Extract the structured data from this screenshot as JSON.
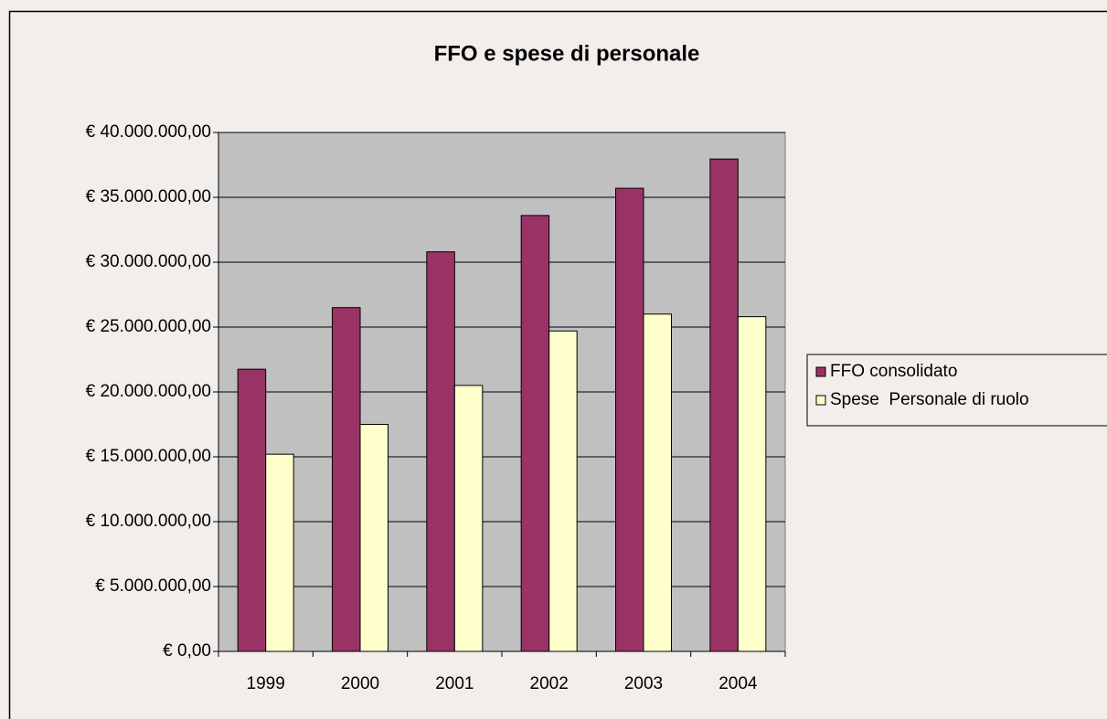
{
  "chart_data": {
    "type": "bar",
    "title": "FFO e spese di personale",
    "categories": [
      "1999",
      "2000",
      "2001",
      "2002",
      "2003",
      "2004"
    ],
    "series": [
      {
        "name": "FFO consolidato",
        "color": "#993366",
        "values": [
          21750000,
          26500000,
          30800000,
          33600000,
          35700000,
          37950000
        ]
      },
      {
        "name": "Spese  Personale di ruolo",
        "color": "#ffffcc",
        "values": [
          15200000,
          17500000,
          20500000,
          24700000,
          26000000,
          25800000
        ]
      }
    ],
    "ylim": [
      0,
      40000000
    ],
    "yticks": [
      {
        "value": 0,
        "label": "€ 0,00"
      },
      {
        "value": 5000000,
        "label": "€ 5.000.000,00"
      },
      {
        "value": 10000000,
        "label": "€ 10.000.000,00"
      },
      {
        "value": 15000000,
        "label": "€ 15.000.000,00"
      },
      {
        "value": 20000000,
        "label": "€ 20.000.000,00"
      },
      {
        "value": 25000000,
        "label": "€ 25.000.000,00"
      },
      {
        "value": 30000000,
        "label": "€ 30.000.000,00"
      },
      {
        "value": 35000000,
        "label": "€ 35.000.000,00"
      },
      {
        "value": 40000000,
        "label": "€ 40.000.000,00"
      }
    ],
    "grid": true,
    "plot_background": "#c0c0c0",
    "legend": "right"
  }
}
